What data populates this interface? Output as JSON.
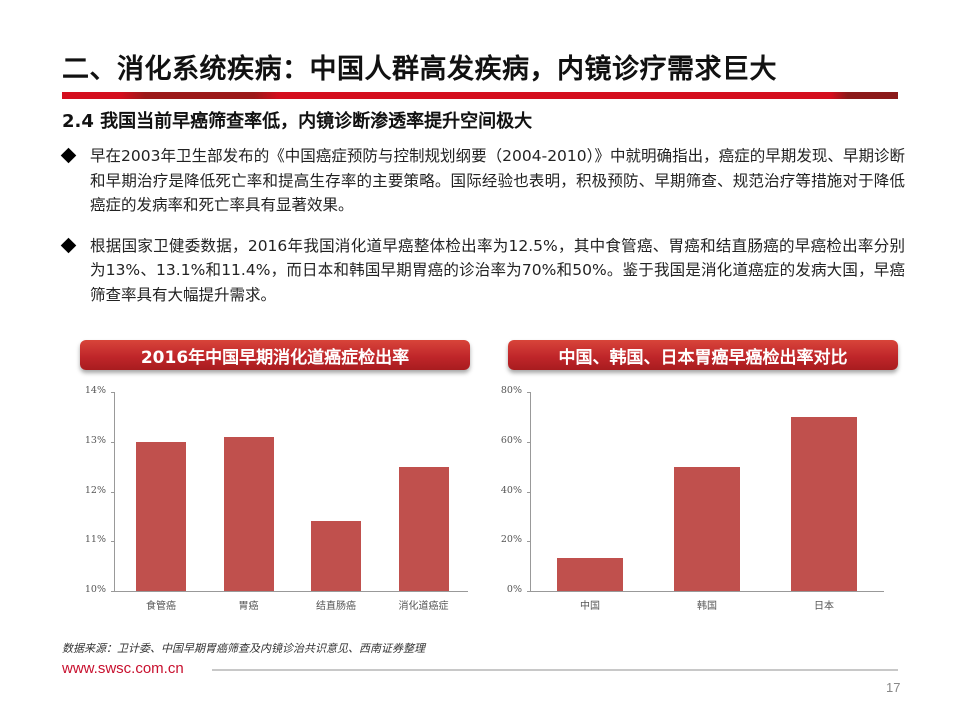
{
  "header": {
    "title": "二、消化系统疾病：中国人群高发疾病，内镜诊疗需求巨大",
    "subtitle": "2.4 我国当前早癌筛查率低，内镜诊断渗透率提升空间极大",
    "bar_colors": {
      "primary": "#d40e1e",
      "dark": "#9c1a1a"
    }
  },
  "bullets": [
    {
      "icon": "diamond-bullet-icon",
      "text": "早在2003年卫生部发布的《中国癌症预防与控制规划纲要（2004-2010）》中就明确指出，癌症的早期发现、早期诊断和早期治疗是降低死亡率和提高生存率的主要策略。国际经验也表明，积极预防、早期筛查、规范治疗等措施对于降低癌症的发病率和死亡率具有显著效果。"
    },
    {
      "icon": "diamond-bullet-icon",
      "text": "根据国家卫健委数据，2016年我国消化道早癌整体检出率为12.5%，其中食管癌、胃癌和结直肠癌的早癌检出率分别为13%、13.1%和11.4%，而日本和韩国早期胃癌的诊治率为70%和50%。鉴于我国是消化道癌症的发病大国，早癌筛查率具有大幅提升需求。"
    }
  ],
  "charts": [
    {
      "header": "2016年中国早期消化道癌症检出率"
    },
    {
      "header": "中国、韩国、日本胃癌早癌检出率对比"
    }
  ],
  "chart_data": [
    {
      "type": "bar",
      "title": "2016年中国早期消化道癌症检出率",
      "categories": [
        "食管癌",
        "胃癌",
        "结直肠癌",
        "消化道癌症"
      ],
      "values": [
        13.0,
        13.1,
        11.4,
        12.5
      ],
      "unit": "%",
      "xlabel": "",
      "ylabel": "",
      "ylim": [
        10,
        14
      ],
      "yticks": [
        "10%",
        "11%",
        "12%",
        "13%",
        "14%"
      ],
      "grid": false,
      "legend": null,
      "bar_color": "#c0504d"
    },
    {
      "type": "bar",
      "title": "中国、韩国、日本胃癌早癌检出率对比",
      "categories": [
        "中国",
        "韩国",
        "日本"
      ],
      "values": [
        13.1,
        50,
        70
      ],
      "unit": "%",
      "xlabel": "",
      "ylabel": "",
      "ylim": [
        0,
        80
      ],
      "yticks": [
        "0%",
        "20%",
        "40%",
        "60%",
        "80%"
      ],
      "grid": false,
      "legend": null,
      "bar_color": "#c0504d"
    }
  ],
  "footer": {
    "source": "数据来源：卫计委、中国早期胃癌筛查及内镜诊治共识意见、西南证券整理",
    "website": "www.swsc.com.cn",
    "page_number": "17",
    "brand_color": "#c8102e"
  }
}
